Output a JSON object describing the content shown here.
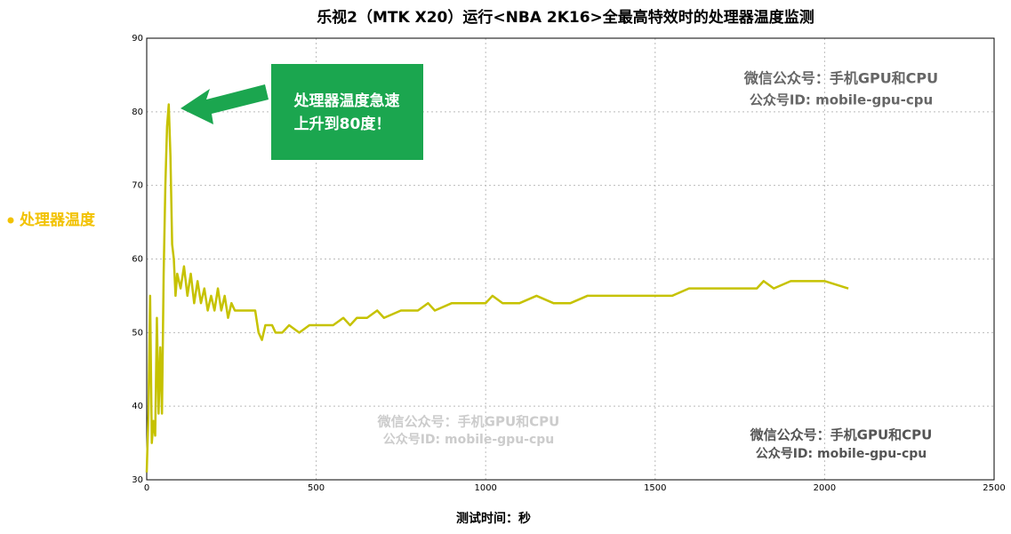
{
  "chart_data": {
    "type": "line",
    "title": "乐视2（MTK X20）运行<NBA 2K16>全最高特效时的处理器温度监测",
    "x_label": "测试时间：秒",
    "x": [
      0,
      5,
      10,
      15,
      20,
      25,
      30,
      35,
      40,
      45,
      50,
      55,
      60,
      65,
      70,
      75,
      80,
      85,
      90,
      100,
      110,
      120,
      130,
      140,
      150,
      160,
      170,
      180,
      190,
      200,
      210,
      220,
      230,
      240,
      250,
      260,
      280,
      300,
      320,
      330,
      340,
      350,
      370,
      380,
      400,
      420,
      450,
      480,
      500,
      550,
      580,
      600,
      620,
      650,
      680,
      700,
      750,
      800,
      830,
      850,
      900,
      950,
      1000,
      1020,
      1050,
      1100,
      1150,
      1200,
      1250,
      1300,
      1350,
      1400,
      1450,
      1500,
      1550,
      1600,
      1650,
      1700,
      1750,
      1800,
      1820,
      1850,
      1900,
      1950,
      2000,
      2070
    ],
    "series": [
      {
        "name": "处理器温度",
        "color": "#c6c200",
        "legend_color": "#f2c200",
        "values": [
          31,
          39,
          55,
          35,
          38,
          36,
          52,
          39,
          48,
          39,
          58,
          70,
          78,
          81,
          74,
          62,
          60,
          55,
          58,
          56,
          59,
          55,
          58,
          54,
          57,
          54,
          56,
          53,
          55,
          53,
          56,
          53,
          55,
          52,
          54,
          53,
          53,
          53,
          53,
          50,
          49,
          51,
          51,
          50,
          50,
          51,
          50,
          51,
          51,
          51,
          52,
          51,
          52,
          52,
          53,
          52,
          53,
          53,
          54,
          53,
          54,
          54,
          54,
          55,
          54,
          54,
          55,
          54,
          54,
          55,
          55,
          55,
          55,
          55,
          55,
          56,
          56,
          56,
          56,
          56,
          57,
          56,
          57,
          57,
          57,
          56
        ]
      }
    ],
    "xlim": [
      0,
      2500
    ],
    "xticks": [
      0,
      500,
      1000,
      1500,
      2000,
      2500
    ],
    "ylim": [
      30,
      90
    ],
    "yticks": [
      30,
      40,
      50,
      60,
      70,
      80,
      90
    ],
    "grid": true,
    "annotations": [
      {
        "lines": [
          "处理器温度急速",
          "上升到80度！"
        ]
      }
    ],
    "watermarks": [
      {
        "lines": [
          "微信公众号：手机GPU和CPU",
          "公众号ID: mobile-gpu-cpu"
        ]
      },
      {
        "lines": [
          "微信公众号：手机GPU和CPU",
          "公众号ID: mobile-gpu-cpu"
        ]
      },
      {
        "lines": [
          "微信公众号：手机GPU和CPU",
          "公众号ID: mobile-gpu-cpu"
        ]
      }
    ]
  }
}
